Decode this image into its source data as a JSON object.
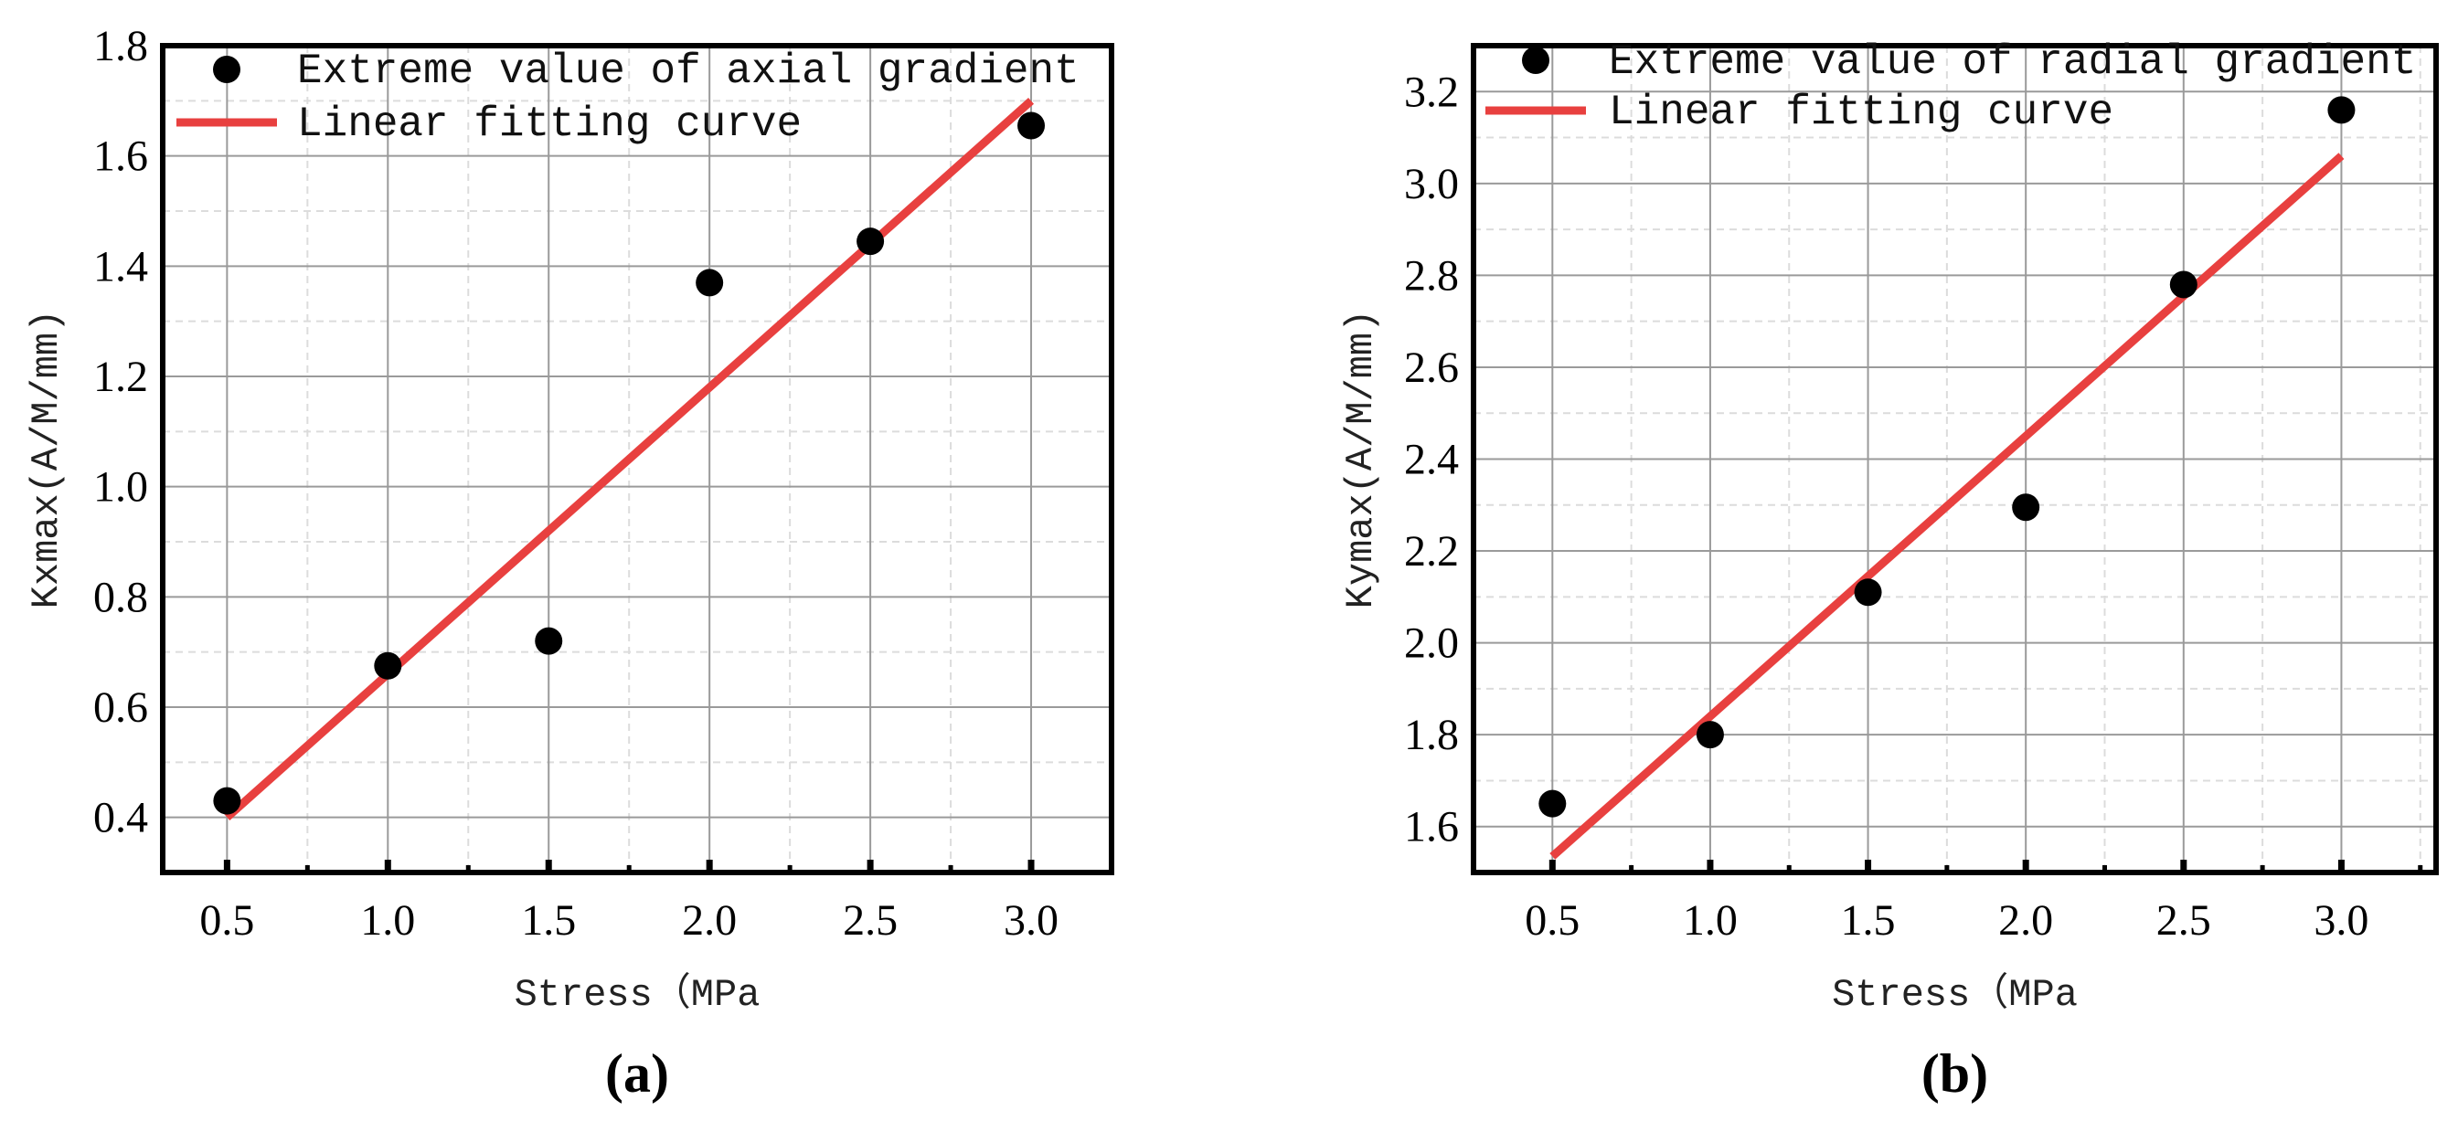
{
  "chart_data": [
    {
      "type": "scatter",
      "panel_label": "(a)",
      "xlabel": "Stress（MPa",
      "ylabel": "Kxmax(A/M/mm)",
      "xlim": [
        0.3,
        3.25
      ],
      "ylim": [
        0.3,
        1.8
      ],
      "xticks": [
        0.5,
        1.0,
        1.5,
        2.0,
        2.5,
        3.0
      ],
      "xtick_labels": [
        "0.5",
        "1.0",
        "1.5",
        "2.0",
        "2.5",
        "3.0"
      ],
      "yticks": [
        0.4,
        0.6,
        0.8,
        1.0,
        1.2,
        1.4,
        1.6,
        1.8
      ],
      "ytick_labels": [
        "0.4",
        "0.6",
        "0.8",
        "1.0",
        "1.2",
        "1.4",
        "1.6",
        "1.8"
      ],
      "grid": true,
      "legend_position": "top-left",
      "series": [
        {
          "name": "Extreme value of axial gradient",
          "kind": "points",
          "color": "#000000",
          "x": [
            0.5,
            1.0,
            1.5,
            2.0,
            2.5,
            3.0
          ],
          "y": [
            0.43,
            0.675,
            0.72,
            1.37,
            1.445,
            1.655
          ]
        },
        {
          "name": "Linear fitting curve",
          "kind": "line",
          "color": "#e8403f",
          "x": [
            0.5,
            3.0
          ],
          "y": [
            0.4,
            1.7
          ]
        }
      ]
    },
    {
      "type": "scatter",
      "panel_label": "(b)",
      "xlabel": "Stress（MPa",
      "ylabel": "Kymax(A/M/mm)",
      "xlim": [
        0.25,
        3.3
      ],
      "ylim": [
        1.5,
        3.3
      ],
      "xticks": [
        0.5,
        1.0,
        1.5,
        2.0,
        2.5,
        3.0
      ],
      "xtick_labels": [
        "0.5",
        "1.0",
        "1.5",
        "2.0",
        "2.5",
        "3.0"
      ],
      "yticks": [
        1.6,
        1.8,
        2.0,
        2.2,
        2.4,
        2.6,
        2.8,
        3.0,
        3.2
      ],
      "ytick_labels": [
        "1.6",
        "1.8",
        "2.0",
        "2.2",
        "2.4",
        "2.6",
        "2.8",
        "3.0",
        "3.2"
      ],
      "grid": true,
      "legend_position": "top-left",
      "series": [
        {
          "name": "Extreme value of radial gradient",
          "kind": "points",
          "color": "#000000",
          "x": [
            0.5,
            1.0,
            1.5,
            2.0,
            2.5,
            3.0
          ],
          "y": [
            1.65,
            1.8,
            2.11,
            2.295,
            2.78,
            3.16
          ]
        },
        {
          "name": "Linear fitting curve",
          "kind": "line",
          "color": "#e8403f",
          "x": [
            0.5,
            3.0
          ],
          "y": [
            1.535,
            3.06
          ]
        }
      ]
    }
  ]
}
